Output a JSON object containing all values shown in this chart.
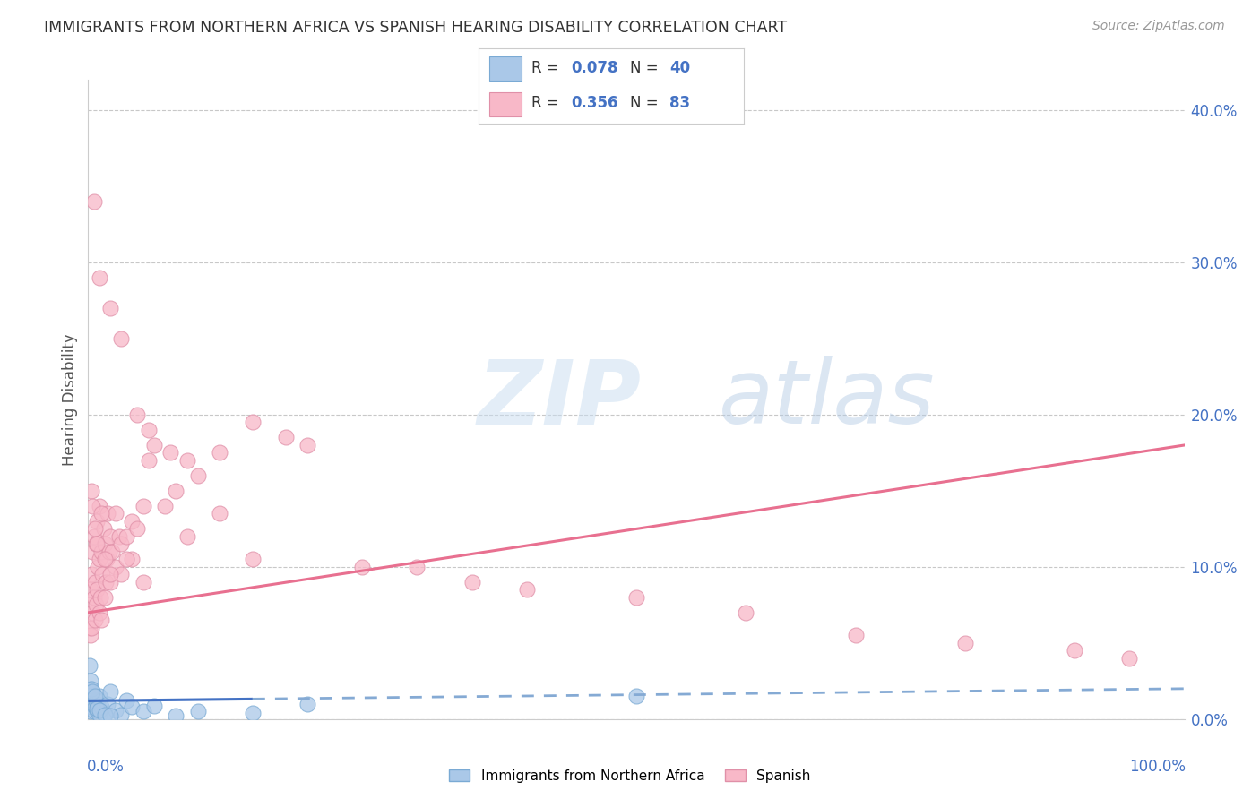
{
  "title": "IMMIGRANTS FROM NORTHERN AFRICA VS SPANISH HEARING DISABILITY CORRELATION CHART",
  "source": "Source: ZipAtlas.com",
  "ylabel": "Hearing Disability",
  "legend1_R": "0.078",
  "legend1_N": "40",
  "legend2_R": "0.356",
  "legend2_N": "83",
  "ytick_vals": [
    0,
    10,
    20,
    30,
    40
  ],
  "xlim": [
    0,
    100
  ],
  "ylim": [
    0,
    42
  ],
  "blue_scatter_x": [
    0.1,
    0.15,
    0.2,
    0.2,
    0.25,
    0.3,
    0.3,
    0.4,
    0.5,
    0.5,
    0.6,
    0.7,
    0.8,
    0.9,
    1.0,
    1.0,
    1.2,
    1.5,
    1.8,
    2.0,
    2.5,
    3.0,
    3.5,
    4.0,
    5.0,
    6.0,
    8.0,
    10.0,
    15.0,
    20.0,
    0.1,
    0.2,
    0.3,
    0.4,
    0.6,
    0.8,
    1.0,
    1.5,
    2.0,
    50.0
  ],
  "blue_scatter_y": [
    1.5,
    1.0,
    2.0,
    0.5,
    1.2,
    0.8,
    1.8,
    1.0,
    0.5,
    1.5,
    0.8,
    1.2,
    0.6,
    1.0,
    1.5,
    0.3,
    0.8,
    0.4,
    1.0,
    1.8,
    0.6,
    0.3,
    1.2,
    0.8,
    0.5,
    0.9,
    0.2,
    0.5,
    0.4,
    1.0,
    3.5,
    2.5,
    2.0,
    1.8,
    1.5,
    0.7,
    0.6,
    0.3,
    0.2,
    1.5
  ],
  "pink_scatter_x": [
    0.1,
    0.15,
    0.2,
    0.2,
    0.3,
    0.3,
    0.4,
    0.4,
    0.5,
    0.5,
    0.6,
    0.6,
    0.7,
    0.7,
    0.8,
    0.8,
    0.9,
    1.0,
    1.0,
    1.0,
    1.1,
    1.2,
    1.2,
    1.3,
    1.4,
    1.5,
    1.5,
    1.6,
    1.7,
    1.8,
    1.9,
    2.0,
    2.0,
    2.2,
    2.5,
    2.5,
    2.8,
    3.0,
    3.0,
    3.5,
    4.0,
    4.0,
    4.5,
    5.0,
    5.5,
    6.0,
    7.0,
    8.0,
    9.0,
    10.0,
    12.0,
    15.0,
    18.0,
    20.0,
    25.0,
    30.0,
    35.0,
    40.0,
    50.0,
    60.0,
    70.0,
    80.0,
    90.0,
    95.0,
    0.5,
    1.0,
    2.0,
    3.0,
    4.5,
    5.5,
    7.5,
    9.0,
    12.0,
    15.0,
    0.3,
    0.4,
    0.6,
    0.8,
    1.2,
    1.5,
    2.0,
    3.5,
    5.0
  ],
  "pink_scatter_y": [
    6.0,
    7.5,
    5.5,
    8.5,
    6.0,
    9.5,
    7.0,
    11.0,
    8.0,
    12.0,
    6.5,
    9.0,
    7.5,
    11.5,
    8.5,
    13.0,
    10.0,
    7.0,
    10.5,
    14.0,
    8.0,
    6.5,
    11.0,
    9.5,
    12.5,
    8.0,
    11.5,
    9.0,
    10.5,
    13.5,
    11.0,
    9.0,
    12.0,
    11.0,
    10.0,
    13.5,
    12.0,
    9.5,
    11.5,
    12.0,
    10.5,
    13.0,
    12.5,
    14.0,
    19.0,
    18.0,
    14.0,
    15.0,
    12.0,
    16.0,
    17.5,
    19.5,
    18.5,
    18.0,
    10.0,
    10.0,
    9.0,
    8.5,
    8.0,
    7.0,
    5.5,
    5.0,
    4.5,
    4.0,
    34.0,
    29.0,
    27.0,
    25.0,
    20.0,
    17.0,
    17.5,
    17.0,
    13.5,
    10.5,
    15.0,
    14.0,
    12.5,
    11.5,
    13.5,
    10.5,
    9.5,
    10.5,
    9.0
  ]
}
